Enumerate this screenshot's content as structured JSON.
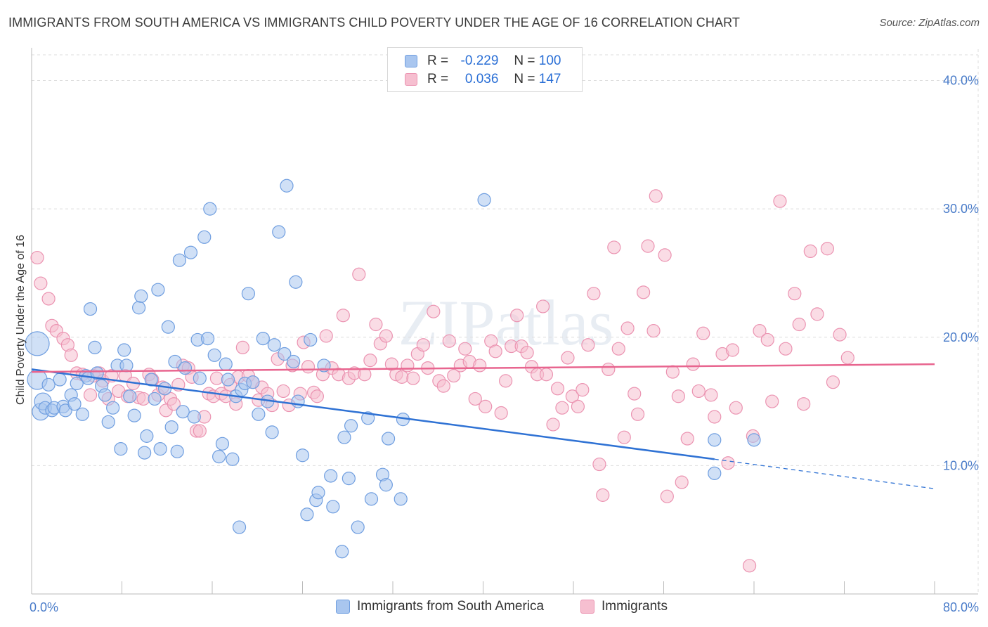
{
  "title": "IMMIGRANTS FROM SOUTH AMERICA VS IMMIGRANTS CHILD POVERTY UNDER THE AGE OF 16 CORRELATION CHART",
  "source": "Source: ZipAtlas.com",
  "watermark": "ZIPatlas",
  "legend_top": {
    "r_label": "R =",
    "n_label": "N =",
    "rows": [
      {
        "r": "-0.229",
        "n": "100"
      },
      {
        "r": "0.036",
        "n": "147"
      }
    ]
  },
  "colors": {
    "blue_fill": "#a9c6ef",
    "blue_stroke": "#6f9ee0",
    "blue_line": "#2f72d4",
    "pink_fill": "#f6bfd0",
    "pink_stroke": "#eb93b1",
    "pink_line": "#e8658f",
    "tick_text": "#4a7cc9",
    "grid": "#dddddd"
  },
  "chart_data": {
    "type": "scatter",
    "title": "IMMIGRANTS FROM SOUTH AMERICA VS IMMIGRANTS CHILD POVERTY UNDER THE AGE OF 16 CORRELATION CHART",
    "xlabel": "",
    "ylabel": "Child Poverty Under the Age of 16",
    "xlim": [
      0,
      80
    ],
    "ylim": [
      0,
      42
    ],
    "x_tick_labels": [
      "0.0%",
      "80.0%"
    ],
    "y_ticks": [
      10,
      20,
      30,
      40
    ],
    "y_tick_labels": [
      "10.0%",
      "20.0%",
      "30.0%",
      "40.0%"
    ],
    "grid": true,
    "legend_position": "bottom",
    "series": [
      {
        "name": "Immigrants from South America",
        "r": -0.229,
        "n": 100,
        "trend": {
          "x0": 0,
          "y0": 17.5,
          "x1": 60.5,
          "y1": 10.5,
          "dashed_to_x": 80,
          "dashed_to_y": 8.2
        },
        "points": [
          [
            0.5,
            19.5
          ],
          [
            0.5,
            16.7
          ],
          [
            0.8,
            14.2
          ],
          [
            1.0,
            15.0
          ],
          [
            1.2,
            14.5
          ],
          [
            1.5,
            16.3
          ],
          [
            1.8,
            14.3
          ],
          [
            2.0,
            14.5
          ],
          [
            2.5,
            16.7
          ],
          [
            2.8,
            14.6
          ],
          [
            3.0,
            14.3
          ],
          [
            3.5,
            15.5
          ],
          [
            3.8,
            14.8
          ],
          [
            4.0,
            16.4
          ],
          [
            4.5,
            14.0
          ],
          [
            4.8,
            17.0
          ],
          [
            5.0,
            16.8
          ],
          [
            5.2,
            22.2
          ],
          [
            5.6,
            19.2
          ],
          [
            5.8,
            17.2
          ],
          [
            6.2,
            16.2
          ],
          [
            6.5,
            15.5
          ],
          [
            6.8,
            13.4
          ],
          [
            7.2,
            14.5
          ],
          [
            7.6,
            17.8
          ],
          [
            7.9,
            11.3
          ],
          [
            8.2,
            19.0
          ],
          [
            8.4,
            17.8
          ],
          [
            8.7,
            15.4
          ],
          [
            9.1,
            13.9
          ],
          [
            9.5,
            22.3
          ],
          [
            9.7,
            23.2
          ],
          [
            10.0,
            11.0
          ],
          [
            10.2,
            12.3
          ],
          [
            10.6,
            16.7
          ],
          [
            10.9,
            15.2
          ],
          [
            11.2,
            23.7
          ],
          [
            11.4,
            11.3
          ],
          [
            11.8,
            16.0
          ],
          [
            12.1,
            20.8
          ],
          [
            12.4,
            13.0
          ],
          [
            12.7,
            18.1
          ],
          [
            12.9,
            11.1
          ],
          [
            13.1,
            26.0
          ],
          [
            13.4,
            14.2
          ],
          [
            13.6,
            17.6
          ],
          [
            14.1,
            26.6
          ],
          [
            14.4,
            13.8
          ],
          [
            14.7,
            19.8
          ],
          [
            14.9,
            16.8
          ],
          [
            15.3,
            27.8
          ],
          [
            15.6,
            19.9
          ],
          [
            15.8,
            30.0
          ],
          [
            16.2,
            18.6
          ],
          [
            16.6,
            10.7
          ],
          [
            16.9,
            11.7
          ],
          [
            17.2,
            17.9
          ],
          [
            17.4,
            16.7
          ],
          [
            17.8,
            10.5
          ],
          [
            18.1,
            15.4
          ],
          [
            18.4,
            5.2
          ],
          [
            18.6,
            15.9
          ],
          [
            18.9,
            16.4
          ],
          [
            19.2,
            23.4
          ],
          [
            19.6,
            16.5
          ],
          [
            20.1,
            14.0
          ],
          [
            20.5,
            19.9
          ],
          [
            20.9,
            15.0
          ],
          [
            21.3,
            12.6
          ],
          [
            21.5,
            19.4
          ],
          [
            21.9,
            28.2
          ],
          [
            22.4,
            18.7
          ],
          [
            22.6,
            31.8
          ],
          [
            23.2,
            18.1
          ],
          [
            23.4,
            24.3
          ],
          [
            23.6,
            15.0
          ],
          [
            24.0,
            10.8
          ],
          [
            24.4,
            6.2
          ],
          [
            24.7,
            19.8
          ],
          [
            25.2,
            7.3
          ],
          [
            25.4,
            7.9
          ],
          [
            25.9,
            17.8
          ],
          [
            26.5,
            9.2
          ],
          [
            26.7,
            6.8
          ],
          [
            27.5,
            3.3
          ],
          [
            27.7,
            12.2
          ],
          [
            28.1,
            9.0
          ],
          [
            28.3,
            13.1
          ],
          [
            28.9,
            5.2
          ],
          [
            29.8,
            13.7
          ],
          [
            30.1,
            7.4
          ],
          [
            31.1,
            9.3
          ],
          [
            31.4,
            8.5
          ],
          [
            31.6,
            12.1
          ],
          [
            32.7,
            7.4
          ],
          [
            32.9,
            13.6
          ],
          [
            40.1,
            30.7
          ],
          [
            60.5,
            12.0
          ],
          [
            60.5,
            9.4
          ],
          [
            64.0,
            12.0
          ]
        ]
      },
      {
        "name": "Immigrants",
        "r": 0.036,
        "n": 147,
        "trend": {
          "x0": 0,
          "y0": 17.3,
          "x1": 80,
          "y1": 17.9
        },
        "points": [
          [
            0.5,
            26.2
          ],
          [
            0.8,
            24.2
          ],
          [
            1.5,
            23.0
          ],
          [
            1.8,
            20.9
          ],
          [
            2.2,
            20.5
          ],
          [
            2.8,
            19.9
          ],
          [
            3.2,
            19.4
          ],
          [
            3.5,
            18.6
          ],
          [
            4.0,
            17.2
          ],
          [
            4.5,
            17.1
          ],
          [
            5.2,
            15.5
          ],
          [
            5.5,
            17.0
          ],
          [
            6.0,
            17.2
          ],
          [
            6.3,
            16.6
          ],
          [
            6.8,
            15.2
          ],
          [
            7.1,
            17.0
          ],
          [
            7.7,
            15.8
          ],
          [
            8.3,
            17.0
          ],
          [
            8.5,
            15.4
          ],
          [
            9.0,
            16.4
          ],
          [
            9.5,
            15.3
          ],
          [
            9.9,
            15.2
          ],
          [
            10.4,
            17.1
          ],
          [
            10.7,
            16.7
          ],
          [
            11.2,
            15.5
          ],
          [
            11.6,
            16.1
          ],
          [
            11.9,
            14.3
          ],
          [
            12.3,
            15.2
          ],
          [
            12.6,
            14.8
          ],
          [
            13.0,
            16.3
          ],
          [
            13.4,
            17.8
          ],
          [
            13.9,
            17.6
          ],
          [
            14.2,
            16.9
          ],
          [
            14.6,
            12.7
          ],
          [
            14.9,
            12.7
          ],
          [
            15.3,
            13.8
          ],
          [
            15.7,
            15.6
          ],
          [
            16.1,
            15.4
          ],
          [
            16.4,
            16.8
          ],
          [
            16.8,
            15.6
          ],
          [
            17.2,
            15.4
          ],
          [
            17.6,
            16.3
          ],
          [
            18.1,
            14.8
          ],
          [
            18.3,
            16.9
          ],
          [
            18.7,
            19.2
          ],
          [
            19.2,
            17.0
          ],
          [
            19.6,
            16.5
          ],
          [
            20.1,
            15.1
          ],
          [
            20.4,
            16.1
          ],
          [
            20.9,
            15.6
          ],
          [
            21.3,
            14.7
          ],
          [
            21.8,
            18.3
          ],
          [
            22.3,
            15.8
          ],
          [
            22.8,
            14.7
          ],
          [
            23.1,
            17.8
          ],
          [
            23.8,
            15.6
          ],
          [
            24.1,
            19.6
          ],
          [
            24.5,
            17.7
          ],
          [
            25.0,
            15.7
          ],
          [
            25.3,
            15.4
          ],
          [
            25.8,
            17.1
          ],
          [
            26.1,
            20.1
          ],
          [
            26.6,
            17.6
          ],
          [
            27.2,
            17.1
          ],
          [
            27.6,
            21.7
          ],
          [
            28.1,
            16.8
          ],
          [
            28.6,
            17.2
          ],
          [
            29.0,
            24.9
          ],
          [
            29.5,
            17.1
          ],
          [
            30.0,
            18.2
          ],
          [
            30.5,
            21.0
          ],
          [
            30.9,
            19.5
          ],
          [
            31.4,
            20.1
          ],
          [
            31.9,
            17.9
          ],
          [
            32.3,
            17.1
          ],
          [
            32.8,
            16.9
          ],
          [
            33.3,
            17.8
          ],
          [
            33.8,
            16.8
          ],
          [
            34.2,
            18.7
          ],
          [
            34.7,
            19.4
          ],
          [
            35.1,
            17.6
          ],
          [
            35.6,
            22.0
          ],
          [
            36.1,
            16.6
          ],
          [
            36.5,
            16.2
          ],
          [
            37.0,
            19.7
          ],
          [
            37.4,
            17.0
          ],
          [
            38.0,
            17.8
          ],
          [
            38.4,
            19.1
          ],
          [
            38.8,
            18.1
          ],
          [
            39.3,
            15.2
          ],
          [
            39.7,
            17.8
          ],
          [
            40.2,
            14.6
          ],
          [
            40.7,
            19.7
          ],
          [
            41.1,
            18.9
          ],
          [
            41.6,
            14.1
          ],
          [
            42.0,
            16.6
          ],
          [
            42.5,
            19.3
          ],
          [
            43.0,
            21.7
          ],
          [
            43.4,
            19.3
          ],
          [
            43.9,
            18.8
          ],
          [
            44.3,
            17.7
          ],
          [
            44.8,
            17.1
          ],
          [
            45.3,
            22.4
          ],
          [
            45.6,
            17.1
          ],
          [
            46.2,
            13.2
          ],
          [
            46.6,
            16.0
          ],
          [
            47.0,
            14.5
          ],
          [
            47.5,
            18.4
          ],
          [
            47.9,
            15.4
          ],
          [
            48.4,
            14.6
          ],
          [
            48.8,
            15.9
          ],
          [
            49.3,
            19.4
          ],
          [
            49.8,
            23.4
          ],
          [
            50.3,
            10.1
          ],
          [
            50.6,
            7.7
          ],
          [
            51.1,
            17.5
          ],
          [
            51.6,
            27.0
          ],
          [
            52.0,
            19.1
          ],
          [
            52.5,
            12.2
          ],
          [
            52.8,
            20.7
          ],
          [
            53.4,
            15.6
          ],
          [
            53.7,
            14.0
          ],
          [
            54.2,
            23.5
          ],
          [
            54.6,
            27.1
          ],
          [
            55.1,
            20.5
          ],
          [
            55.3,
            31.0
          ],
          [
            56.1,
            26.4
          ],
          [
            56.3,
            7.6
          ],
          [
            56.8,
            17.3
          ],
          [
            57.3,
            15.4
          ],
          [
            57.6,
            8.7
          ],
          [
            58.1,
            12.1
          ],
          [
            58.6,
            17.9
          ],
          [
            59.1,
            15.8
          ],
          [
            59.5,
            20.3
          ],
          [
            60.2,
            15.5
          ],
          [
            60.5,
            13.8
          ],
          [
            61.2,
            18.7
          ],
          [
            61.7,
            10.2
          ],
          [
            62.1,
            19.0
          ],
          [
            62.4,
            14.5
          ],
          [
            63.6,
            2.2
          ],
          [
            63.9,
            12.3
          ],
          [
            64.5,
            20.5
          ],
          [
            65.2,
            19.8
          ],
          [
            65.6,
            15.0
          ],
          [
            66.3,
            30.6
          ],
          [
            66.8,
            19.1
          ],
          [
            67.6,
            23.4
          ],
          [
            68.0,
            21.0
          ],
          [
            68.4,
            14.8
          ],
          [
            69.0,
            26.7
          ],
          [
            69.6,
            21.8
          ],
          [
            70.5,
            26.9
          ],
          [
            71.0,
            16.5
          ],
          [
            71.6,
            20.2
          ],
          [
            72.3,
            18.4
          ]
        ]
      }
    ]
  },
  "bottom_legend": [
    {
      "label": "Immigrants from South America"
    },
    {
      "label": "Immigrants"
    }
  ]
}
